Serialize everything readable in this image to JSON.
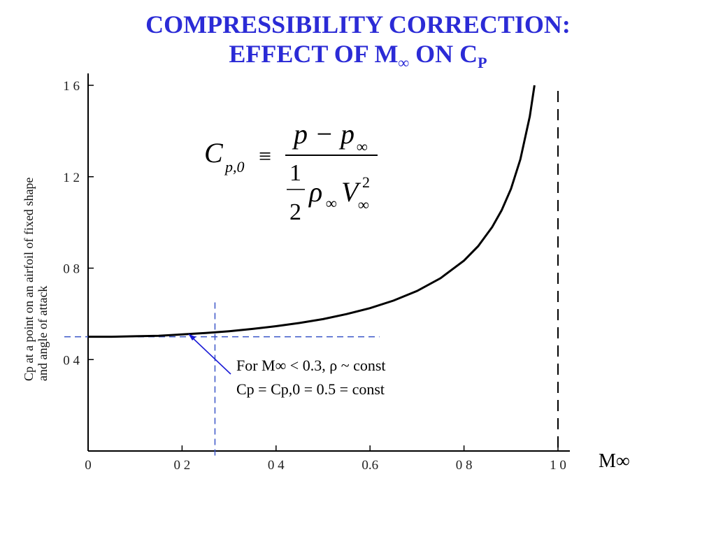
{
  "title": {
    "line1": "COMPRESSIBILITY CORRECTION:",
    "line2_prefix": "EFFECT OF M",
    "line2_sub1": "∞",
    "line2_mid": " ON C",
    "line2_sub2": "P"
  },
  "formula": {
    "lhs": "C",
    "lhs_sub": "p,0",
    "equiv": "≡",
    "numerator": "p − p",
    "numerator_sub": "∞",
    "half_num": "1",
    "half_den": "2",
    "rho": "ρ",
    "rho_sub": "∞",
    "v": "V",
    "v_sub": "∞",
    "v_sup": "2"
  },
  "annotation": {
    "line1": "For M∞ < 0.3, ρ ~ const",
    "line2": "Cp = Cp,0 = 0.5 = const"
  },
  "colors": {
    "title": "#2b2bd6",
    "guide": "#3a55c8",
    "curve": "#000000"
  },
  "chart_data": {
    "type": "line",
    "xlabel": "M∞",
    "ylabel": "Cp at a point on an airfoil of fixed shape and angle of attack",
    "ylabel_line1": "Cp at a point on an airfoil of fixed shape",
    "ylabel_line2": "and angle of attack",
    "xlim": [
      0,
      1.0
    ],
    "ylim": [
      0,
      1.6
    ],
    "xticks": [
      {
        "value": 0,
        "label": "0"
      },
      {
        "value": 0.2,
        "label": "0 2"
      },
      {
        "value": 0.4,
        "label": "0 4"
      },
      {
        "value": 0.6,
        "label": "0.6"
      },
      {
        "value": 0.8,
        "label": "0 8"
      },
      {
        "value": 1.0,
        "label": "1 0"
      }
    ],
    "yticks": [
      {
        "value": 0.4,
        "label": "0 4"
      },
      {
        "value": 0.8,
        "label": "0 8"
      },
      {
        "value": 1.2,
        "label": "1 2"
      },
      {
        "value": 1.6,
        "label": "1 6"
      }
    ],
    "series": [
      {
        "x": [
          0.0,
          0.05,
          0.1,
          0.15,
          0.2,
          0.25,
          0.3,
          0.35,
          0.4,
          0.45,
          0.5,
          0.55,
          0.6,
          0.65,
          0.7,
          0.75,
          0.8,
          0.83,
          0.86,
          0.88,
          0.9,
          0.92,
          0.94,
          0.95
        ],
        "y": [
          0.5,
          0.5,
          0.502,
          0.504,
          0.51,
          0.516,
          0.524,
          0.534,
          0.546,
          0.56,
          0.577,
          0.599,
          0.625,
          0.658,
          0.7,
          0.756,
          0.833,
          0.896,
          0.98,
          1.053,
          1.147,
          1.276,
          1.464,
          1.6
        ]
      }
    ],
    "reference_lines": {
      "horizontal_cp": 0.5,
      "horizontal_x_end": 0.62,
      "vertical_mach": 0.27,
      "vertical_y_end": 0.65,
      "sonic_mach": 1.0
    }
  }
}
